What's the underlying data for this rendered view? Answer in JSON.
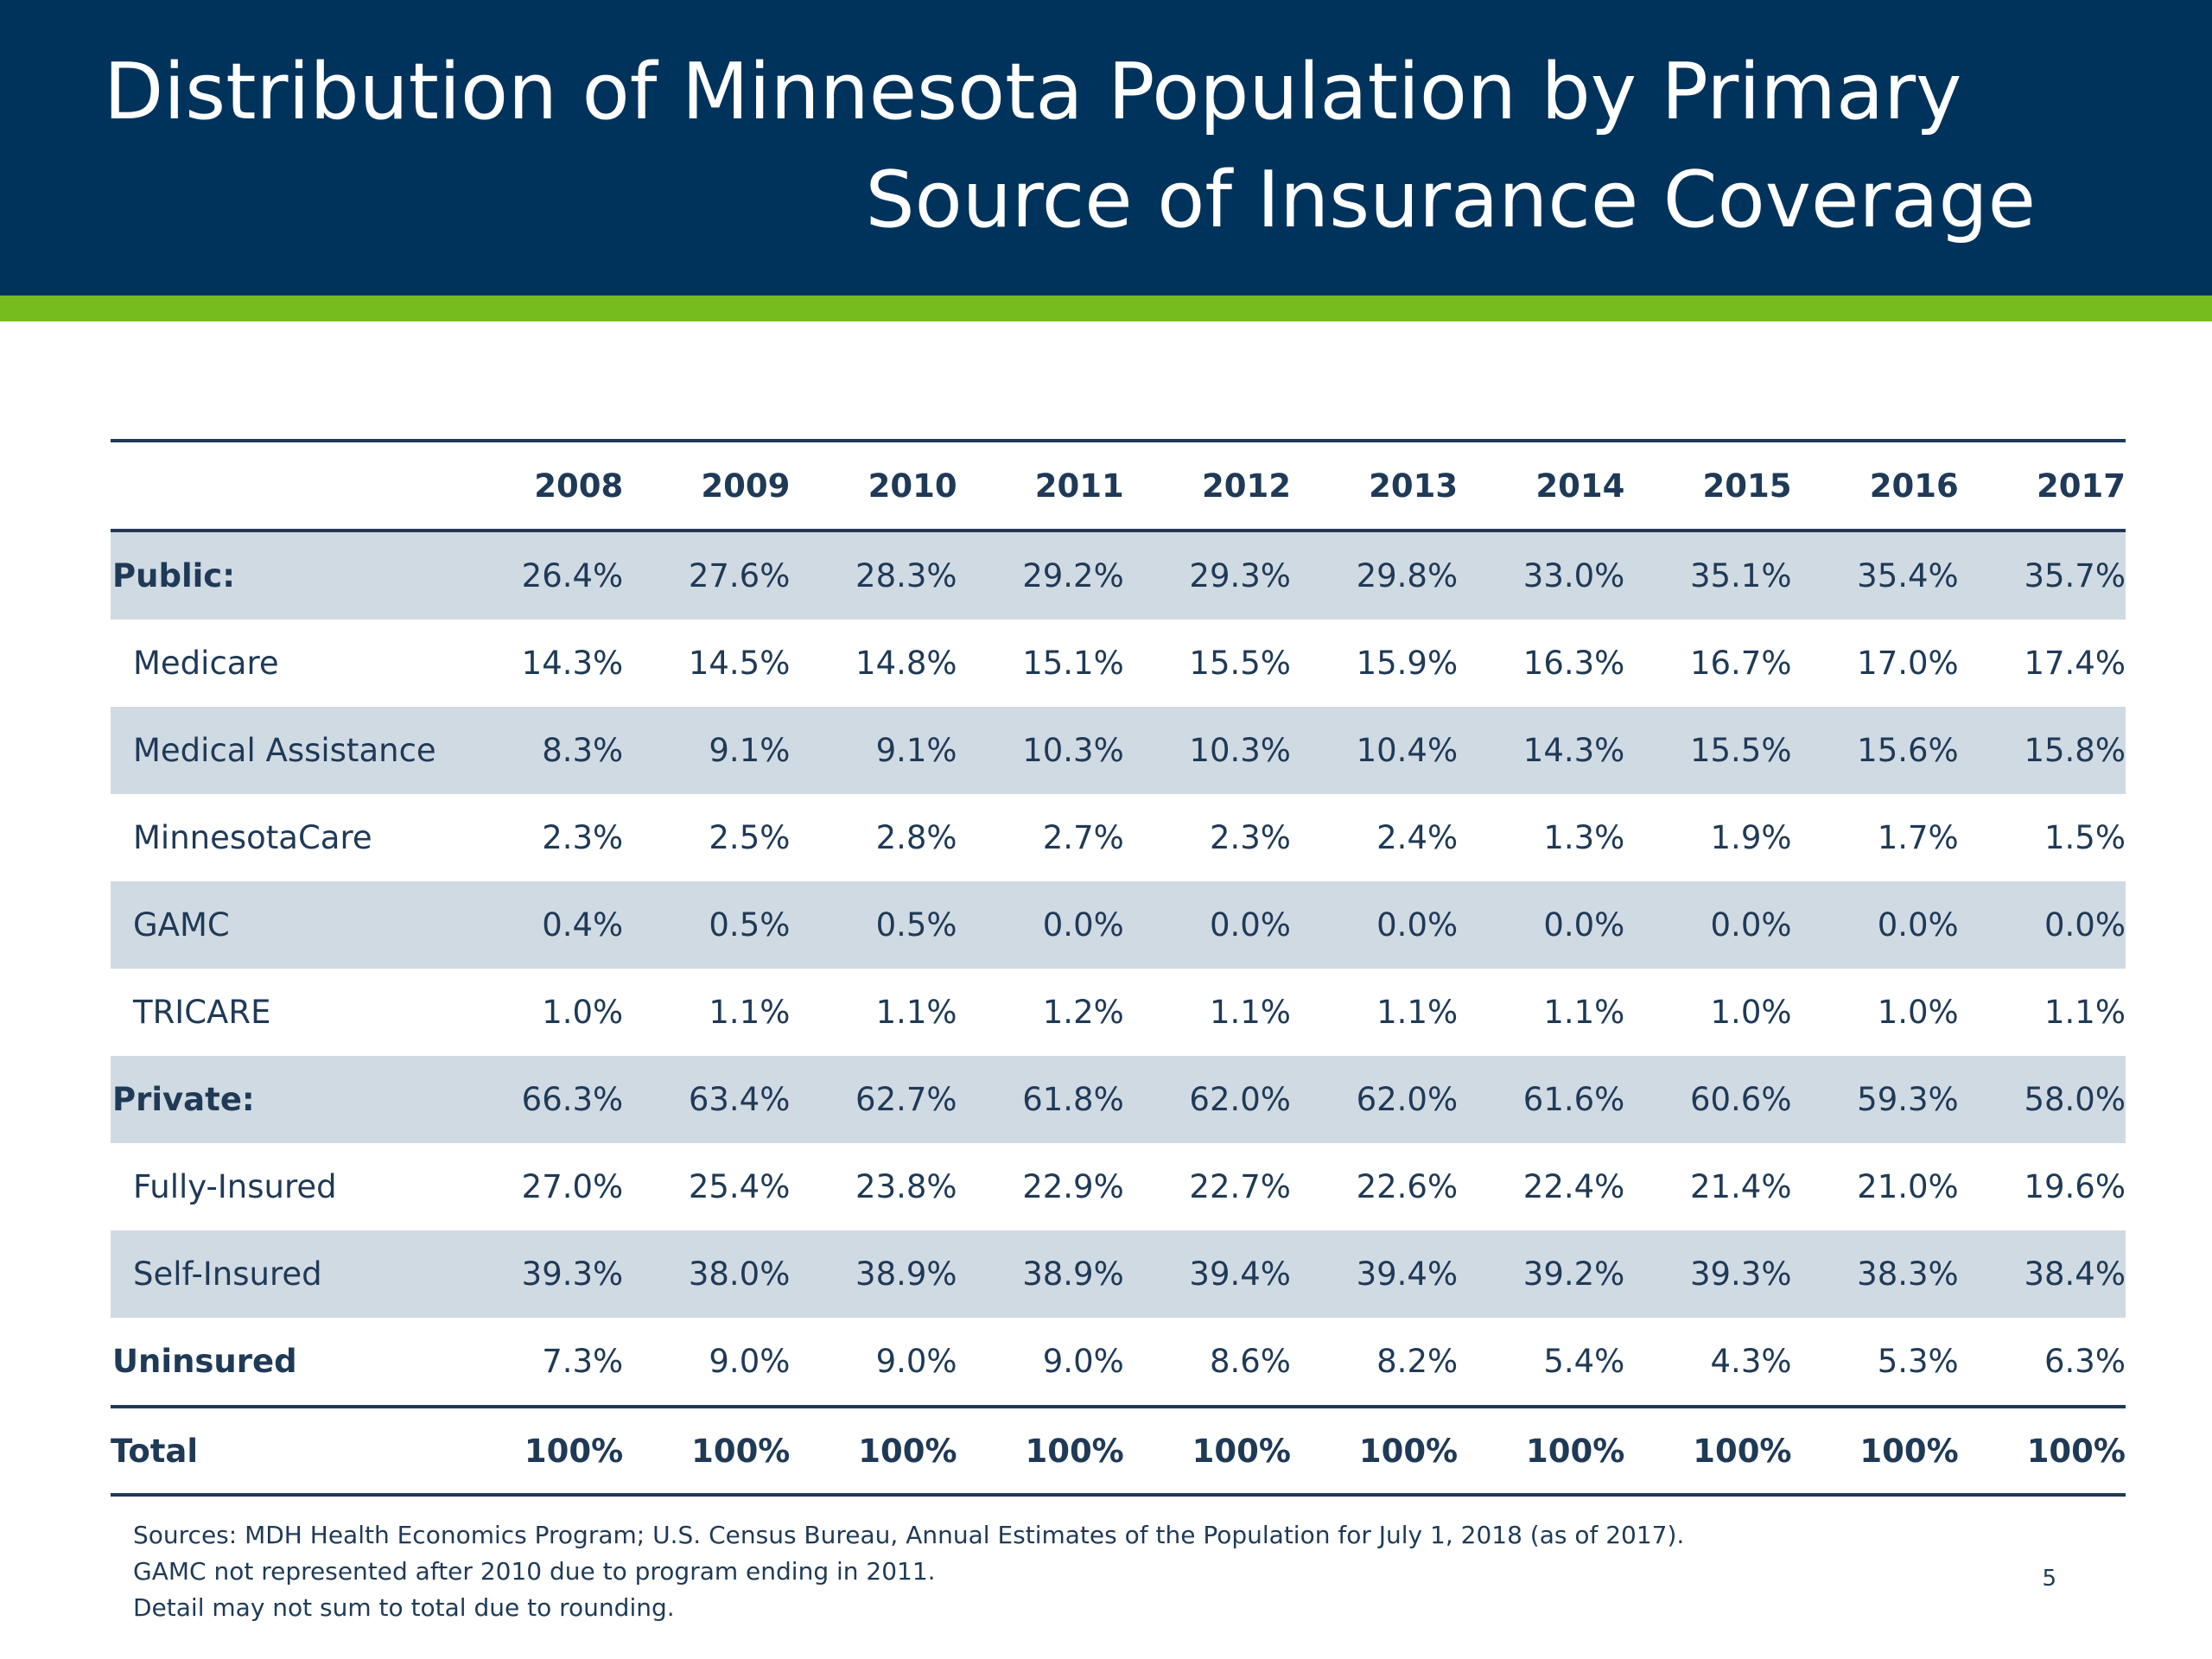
{
  "slide": {
    "title_line1": "Distribution of Minnesota Population by Primary",
    "title_line2": "Source of Insurance Coverage",
    "page_number": "5",
    "colors": {
      "header": "#00335c",
      "accent_bar": "#77bc1f",
      "row_shade": "#d0dae3",
      "text": "#1f3a57"
    }
  },
  "table": {
    "years": [
      "2008",
      "2009",
      "2010",
      "2011",
      "2012",
      "2013",
      "2014",
      "2015",
      "2016",
      "2017"
    ],
    "rows": [
      {
        "label": "Public:",
        "values": [
          "26.4%",
          "27.6%",
          "28.3%",
          "29.2%",
          "29.3%",
          "29.8%",
          "33.0%",
          "35.1%",
          "35.4%",
          "35.7%"
        ]
      },
      {
        "label": "Medicare",
        "values": [
          "14.3%",
          "14.5%",
          "14.8%",
          "15.1%",
          "15.5%",
          "15.9%",
          "16.3%",
          "16.7%",
          "17.0%",
          "17.4%"
        ]
      },
      {
        "label": "Medical Assistance",
        "values": [
          "8.3%",
          "9.1%",
          "9.1%",
          "10.3%",
          "10.3%",
          "10.4%",
          "14.3%",
          "15.5%",
          "15.6%",
          "15.8%"
        ]
      },
      {
        "label": "MinnesotaCare",
        "values": [
          "2.3%",
          "2.5%",
          "2.8%",
          "2.7%",
          "2.3%",
          "2.4%",
          "1.3%",
          "1.9%",
          "1.7%",
          "1.5%"
        ]
      },
      {
        "label": "GAMC",
        "values": [
          "0.4%",
          "0.5%",
          "0.5%",
          "0.0%",
          "0.0%",
          "0.0%",
          "0.0%",
          "0.0%",
          "0.0%",
          "0.0%"
        ]
      },
      {
        "label": "TRICARE",
        "values": [
          "1.0%",
          "1.1%",
          "1.1%",
          "1.2%",
          "1.1%",
          "1.1%",
          "1.1%",
          "1.0%",
          "1.0%",
          "1.1%"
        ]
      },
      {
        "label": "Private:",
        "values": [
          "66.3%",
          "63.4%",
          "62.7%",
          "61.8%",
          "62.0%",
          "62.0%",
          "61.6%",
          "60.6%",
          "59.3%",
          "58.0%"
        ]
      },
      {
        "label": "Fully-Insured",
        "values": [
          "27.0%",
          "25.4%",
          "23.8%",
          "22.9%",
          "22.7%",
          "22.6%",
          "22.4%",
          "21.4%",
          "21.0%",
          "19.6%"
        ]
      },
      {
        "label": "Self-Insured",
        "values": [
          "39.3%",
          "38.0%",
          "38.9%",
          "38.9%",
          "39.4%",
          "39.4%",
          "39.2%",
          "39.3%",
          "38.3%",
          "38.4%"
        ]
      },
      {
        "label": "Uninsured",
        "values": [
          "7.3%",
          "9.0%",
          "9.0%",
          "9.0%",
          "8.6%",
          "8.2%",
          "5.4%",
          "4.3%",
          "5.3%",
          "6.3%"
        ]
      },
      {
        "label": "Total",
        "values": [
          "100%",
          "100%",
          "100%",
          "100%",
          "100%",
          "100%",
          "100%",
          "100%",
          "100%",
          "100%"
        ]
      }
    ]
  },
  "notes": [
    "Sources: MDH Health Economics Program; U.S. Census Bureau, Annual Estimates of the Population for July 1, 2018 (as of 2017).",
    "GAMC not represented after 2010 due to program ending in 2011.",
    "Detail may not sum to total due to rounding."
  ]
}
